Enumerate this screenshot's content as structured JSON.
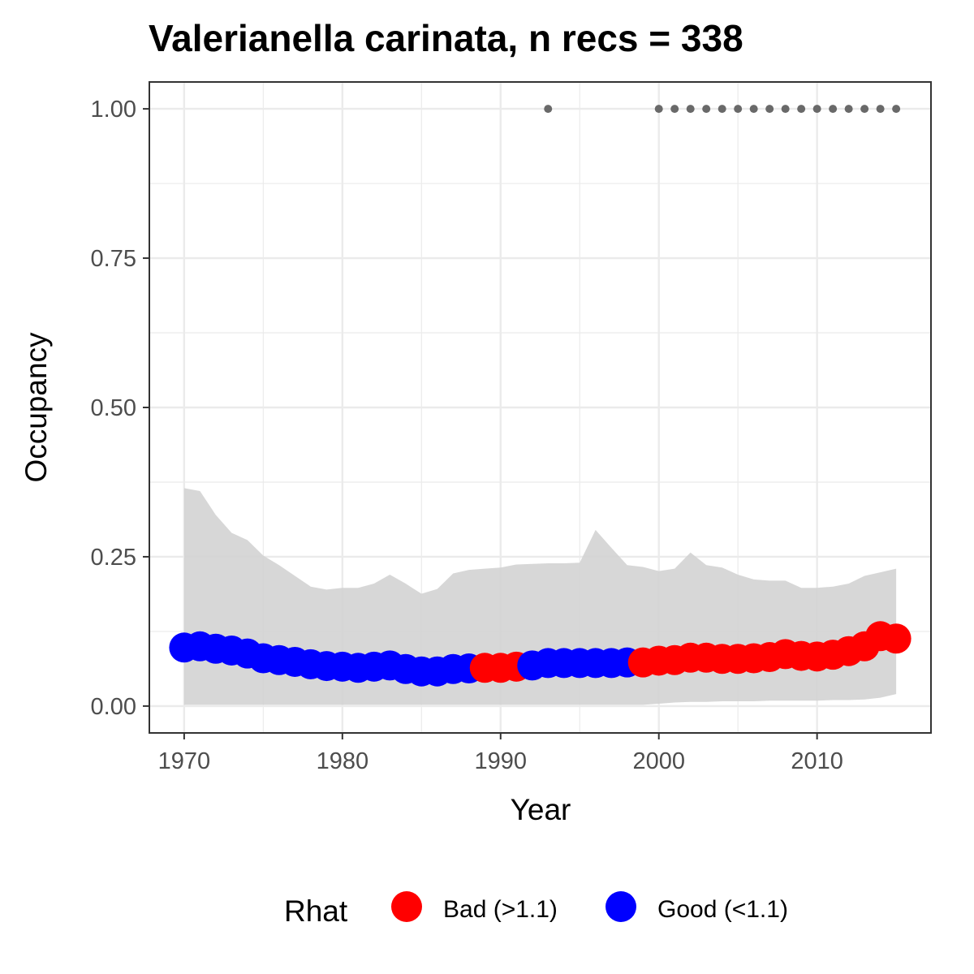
{
  "chart_data": {
    "type": "line",
    "title": "Valerianella carinata, n recs = 338",
    "xlabel": "Year",
    "ylabel": "Occupancy",
    "xlim": [
      1967.8,
      2017.2
    ],
    "ylim": [
      -0.045,
      1.045
    ],
    "x_ticks": [
      1970,
      1980,
      1990,
      2000,
      2010
    ],
    "x_tick_labels": [
      "1970",
      "1980",
      "1990",
      "2000",
      "2010"
    ],
    "y_ticks": [
      0,
      0.25,
      0.5,
      0.75,
      1.0
    ],
    "y_tick_labels": [
      "0.00",
      "0.25",
      "0.50",
      "0.75",
      "1.00"
    ],
    "grid": true,
    "legend": {
      "title": "Rhat",
      "position": "bottom",
      "entries": [
        {
          "label": "Bad (>1.1)",
          "color": "#ff0000"
        },
        {
          "label": "Good (<1.1)",
          "color": "#0000ff"
        }
      ]
    },
    "years": [
      1970,
      1971,
      1972,
      1973,
      1974,
      1975,
      1976,
      1977,
      1978,
      1979,
      1980,
      1981,
      1982,
      1983,
      1984,
      1985,
      1986,
      1987,
      1988,
      1989,
      1990,
      1991,
      1992,
      1993,
      1994,
      1995,
      1996,
      1997,
      1998,
      1999,
      2000,
      2001,
      2002,
      2003,
      2004,
      2005,
      2006,
      2007,
      2008,
      2009,
      2010,
      2011,
      2012,
      2013,
      2014,
      2015
    ],
    "occupancy": [
      0.098,
      0.1,
      0.096,
      0.093,
      0.088,
      0.08,
      0.077,
      0.074,
      0.07,
      0.067,
      0.066,
      0.064,
      0.066,
      0.068,
      0.062,
      0.058,
      0.058,
      0.062,
      0.063,
      0.064,
      0.064,
      0.066,
      0.068,
      0.072,
      0.072,
      0.072,
      0.072,
      0.072,
      0.073,
      0.073,
      0.076,
      0.077,
      0.081,
      0.081,
      0.079,
      0.079,
      0.08,
      0.082,
      0.087,
      0.084,
      0.083,
      0.086,
      0.092,
      0.1,
      0.117,
      0.113
    ],
    "rhat": [
      "Good",
      "Good",
      "Good",
      "Good",
      "Good",
      "Good",
      "Good",
      "Good",
      "Good",
      "Good",
      "Good",
      "Good",
      "Good",
      "Good",
      "Good",
      "Good",
      "Good",
      "Good",
      "Good",
      "Bad",
      "Bad",
      "Bad",
      "Good",
      "Good",
      "Good",
      "Good",
      "Good",
      "Good",
      "Good",
      "Bad",
      "Bad",
      "Bad",
      "Bad",
      "Bad",
      "Bad",
      "Bad",
      "Bad",
      "Bad",
      "Bad",
      "Bad",
      "Bad",
      "Bad",
      "Bad",
      "Bad",
      "Bad",
      "Bad"
    ],
    "ci_lower": [
      0.002,
      0.002,
      0.002,
      0.002,
      0.002,
      0.002,
      0.002,
      0.002,
      0.002,
      0.002,
      0.002,
      0.002,
      0.002,
      0.002,
      0.002,
      0.002,
      0.002,
      0.002,
      0.002,
      0.002,
      0.002,
      0.002,
      0.002,
      0.002,
      0.002,
      0.002,
      0.002,
      0.002,
      0.002,
      0.002,
      0.004,
      0.006,
      0.007,
      0.007,
      0.008,
      0.008,
      0.008,
      0.009,
      0.009,
      0.009,
      0.009,
      0.01,
      0.01,
      0.011,
      0.014,
      0.02
    ],
    "ci_upper": [
      0.365,
      0.36,
      0.32,
      0.29,
      0.278,
      0.252,
      0.236,
      0.218,
      0.2,
      0.195,
      0.198,
      0.198,
      0.205,
      0.22,
      0.205,
      0.188,
      0.196,
      0.222,
      0.228,
      0.23,
      0.232,
      0.237,
      0.238,
      0.239,
      0.239,
      0.24,
      0.295,
      0.265,
      0.236,
      0.233,
      0.226,
      0.23,
      0.257,
      0.236,
      0.232,
      0.22,
      0.212,
      0.21,
      0.21,
      0.198,
      0.198,
      0.2,
      0.205,
      0.218,
      0.224,
      0.23
    ],
    "observed_presence_years": [
      1993,
      2000,
      2001,
      2002,
      2003,
      2004,
      2005,
      2006,
      2007,
      2008,
      2009,
      2010,
      2011,
      2012,
      2013,
      2014,
      2015
    ],
    "observed_presence_value": 1.0,
    "colors": {
      "bad": "#ff0000",
      "good": "#0000ff",
      "ribbon": "#d3d3d3",
      "observed": "#696969",
      "grid": "#ebebeb",
      "panel_border": "#333333"
    }
  }
}
